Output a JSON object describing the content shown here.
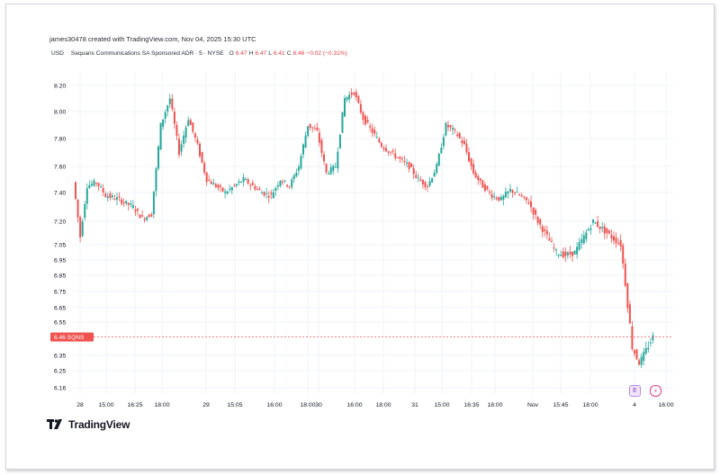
{
  "header": {
    "credit": "james30478 created with TradingView.com, Nov 04, 2025 15:30 UTC"
  },
  "legend": {
    "currency": "USD",
    "instrument": "Sequans Communications SA Sponsored ADR · 5 · NYSE",
    "open_label": "O",
    "open": "6.47",
    "high_label": "H",
    "high": "6.47",
    "low_label": "L",
    "low": "6.41",
    "close_label": "C",
    "close": "6.46",
    "change": "−0.02 (−0.31%)"
  },
  "price_tag": {
    "value": "6.46",
    "symbol": "SQNS"
  },
  "branding": {
    "logo_text": "TradingView"
  },
  "buttons": {
    "earnings_label": "E",
    "dividend_icon": "bolt-icon"
  },
  "colors": {
    "up": "#26a69a",
    "down": "#ef5350",
    "price_line": "#ef5350",
    "grid": "#f0f3fa"
  },
  "chart_data": {
    "type": "candlestick",
    "interval": "5 minutes",
    "y_ticks": [
      "8.20",
      "8.00",
      "7.80",
      "7.60",
      "7.40",
      "7.20",
      "7.05",
      "6.95",
      "6.85",
      "6.75",
      "6.65",
      "6.55",
      "6.35",
      "6.25",
      "6.16"
    ],
    "x_ticks": [
      "28",
      "15:00",
      "16:25",
      "18:00",
      "29",
      "15:05",
      "16:00",
      "18:00",
      "30",
      "16:00",
      "18:00",
      "31",
      "15:00",
      "16:35",
      "18:00",
      "Nov",
      "15:45",
      "18:00",
      "4",
      "16:00"
    ],
    "ylim": [
      6.16,
      8.26
    ],
    "last_price": 6.46,
    "approx_path": [
      [
        0,
        7.48
      ],
      [
        3,
        7.1
      ],
      [
        6,
        7.45
      ],
      [
        10,
        7.48
      ],
      [
        14,
        7.38
      ],
      [
        20,
        7.35
      ],
      [
        26,
        7.3
      ],
      [
        30,
        7.22
      ],
      [
        34,
        7.25
      ],
      [
        38,
        7.9
      ],
      [
        42,
        8.1
      ],
      [
        46,
        7.7
      ],
      [
        50,
        7.95
      ],
      [
        54,
        7.75
      ],
      [
        58,
        7.5
      ],
      [
        62,
        7.45
      ],
      [
        66,
        7.4
      ],
      [
        70,
        7.45
      ],
      [
        74,
        7.5
      ],
      [
        78,
        7.45
      ],
      [
        82,
        7.4
      ],
      [
        86,
        7.38
      ],
      [
        90,
        7.5
      ],
      [
        94,
        7.45
      ],
      [
        98,
        7.6
      ],
      [
        102,
        7.9
      ],
      [
        106,
        7.85
      ],
      [
        110,
        7.55
      ],
      [
        114,
        7.6
      ],
      [
        118,
        8.1
      ],
      [
        122,
        8.15
      ],
      [
        126,
        7.95
      ],
      [
        130,
        7.85
      ],
      [
        134,
        7.75
      ],
      [
        138,
        7.7
      ],
      [
        142,
        7.65
      ],
      [
        146,
        7.6
      ],
      [
        150,
        7.5
      ],
      [
        154,
        7.45
      ],
      [
        158,
        7.6
      ],
      [
        162,
        7.9
      ],
      [
        166,
        7.85
      ],
      [
        170,
        7.75
      ],
      [
        174,
        7.55
      ],
      [
        178,
        7.45
      ],
      [
        182,
        7.38
      ],
      [
        186,
        7.35
      ],
      [
        190,
        7.42
      ],
      [
        194,
        7.38
      ],
      [
        198,
        7.33
      ],
      [
        202,
        7.2
      ],
      [
        206,
        7.1
      ],
      [
        210,
        7.0
      ],
      [
        214,
        6.98
      ],
      [
        218,
        7.0
      ],
      [
        222,
        7.1
      ],
      [
        226,
        7.2
      ],
      [
        230,
        7.15
      ],
      [
        234,
        7.1
      ],
      [
        238,
        7.05
      ],
      [
        240,
        6.8
      ],
      [
        243,
        6.4
      ],
      [
        246,
        6.3
      ],
      [
        249,
        6.38
      ],
      [
        252,
        6.46
      ]
    ]
  }
}
